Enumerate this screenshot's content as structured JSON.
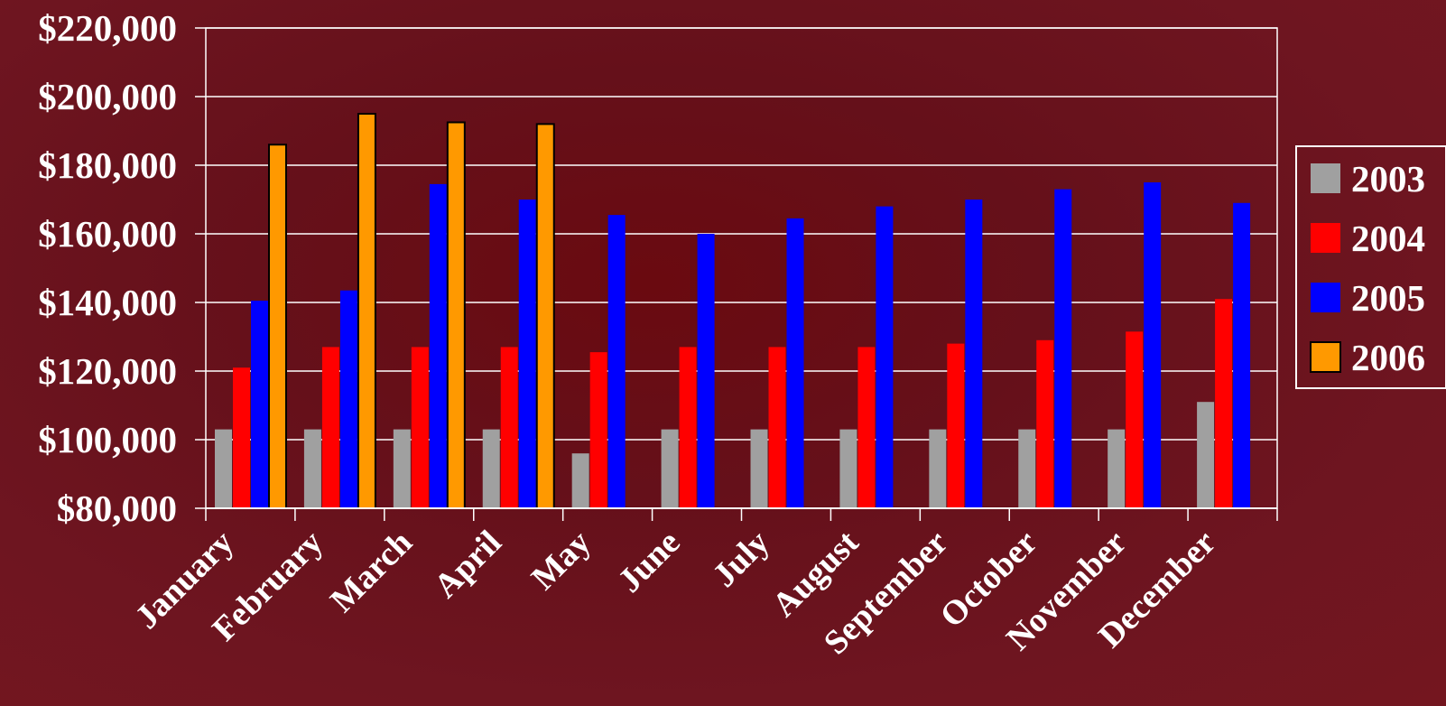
{
  "chart_data": {
    "type": "bar",
    "categories": [
      "January",
      "February",
      "March",
      "April",
      "May",
      "June",
      "July",
      "August",
      "September",
      "October",
      "November",
      "December"
    ],
    "series": [
      {
        "name": "2003",
        "color": "#a0a0a0",
        "values": [
          103000,
          103000,
          103000,
          103000,
          96000,
          103000,
          103000,
          103000,
          103000,
          103000,
          103000,
          111000
        ]
      },
      {
        "name": "2004",
        "color": "#ff0000",
        "values": [
          121000,
          127000,
          127000,
          127000,
          125500,
          127000,
          127000,
          127000,
          128000,
          129000,
          131500,
          141000
        ]
      },
      {
        "name": "2005",
        "color": "#0000ff",
        "values": [
          140500,
          143500,
          174500,
          170000,
          165500,
          160000,
          164500,
          168000,
          170000,
          173000,
          175000,
          169000
        ]
      },
      {
        "name": "2006",
        "color": "#ff9900",
        "values": [
          186000,
          195000,
          192500,
          192000,
          null,
          null,
          null,
          null,
          null,
          null,
          null,
          null
        ]
      }
    ],
    "yticks": [
      "$80,000",
      "$100,000",
      "$120,000",
      "$140,000",
      "$160,000",
      "$180,000",
      "$200,000",
      "$220,000"
    ],
    "ylim": [
      80000,
      220000
    ],
    "ystep": 20000,
    "grid": true,
    "legend": "right"
  }
}
